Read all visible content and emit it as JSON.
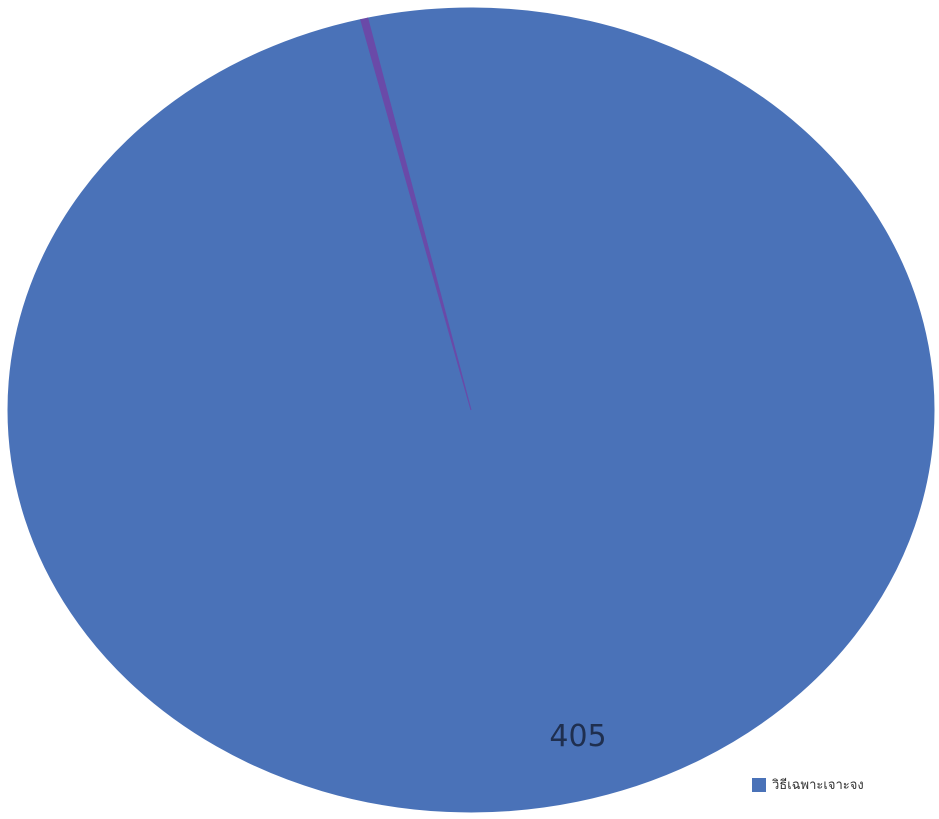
{
  "chart_data": {
    "type": "pie",
    "title": "",
    "slices": [
      {
        "label": "วิธีเฉพาะเจาะจง",
        "value": 405,
        "color": "#4a72b8"
      },
      {
        "label": "",
        "value": 1,
        "color": "#6a4aa8"
      }
    ],
    "data_labels": [
      "405"
    ],
    "legend": {
      "position": "bottom-right",
      "entries": [
        {
          "label": "วิธีเฉพาะเจาะจง",
          "color": "#4a72b8"
        }
      ]
    }
  }
}
